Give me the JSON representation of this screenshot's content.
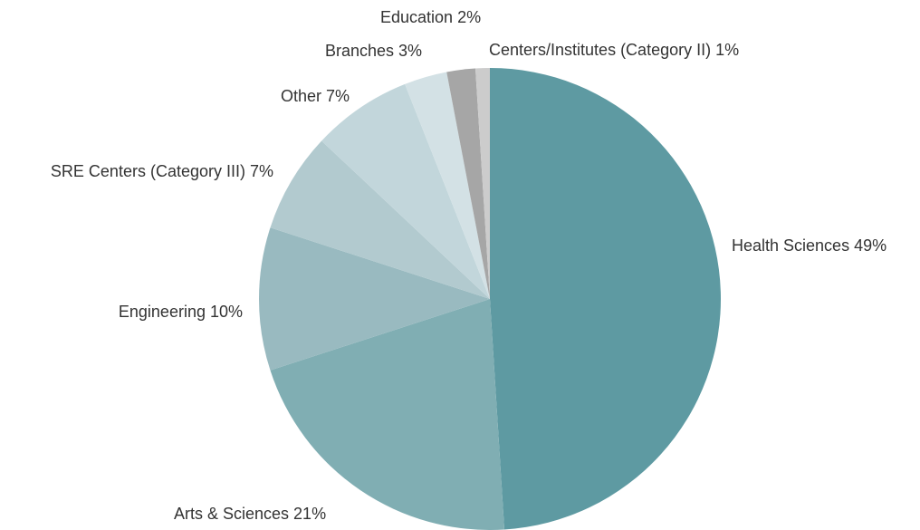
{
  "chart_data": {
    "type": "pie",
    "categories": [
      "Health Sciences",
      "Arts & Sciences",
      "Engineering",
      "SRE Centers (Category III)",
      "Other",
      "Branches",
      "Education",
      "Centers/Institutes (Category II)"
    ],
    "values": [
      49,
      21,
      10,
      7,
      7,
      3,
      2,
      1
    ],
    "value_labels": [
      "49%",
      "21%",
      "10%",
      "7%",
      "7%",
      "3%",
      "2%",
      "1%"
    ],
    "colors": [
      "#5e9aa2",
      "#80aeb3",
      "#99bac0",
      "#b2cacf",
      "#c2d6db",
      "#d3e1e5",
      "#a6a6a6",
      "#cccccc"
    ]
  }
}
